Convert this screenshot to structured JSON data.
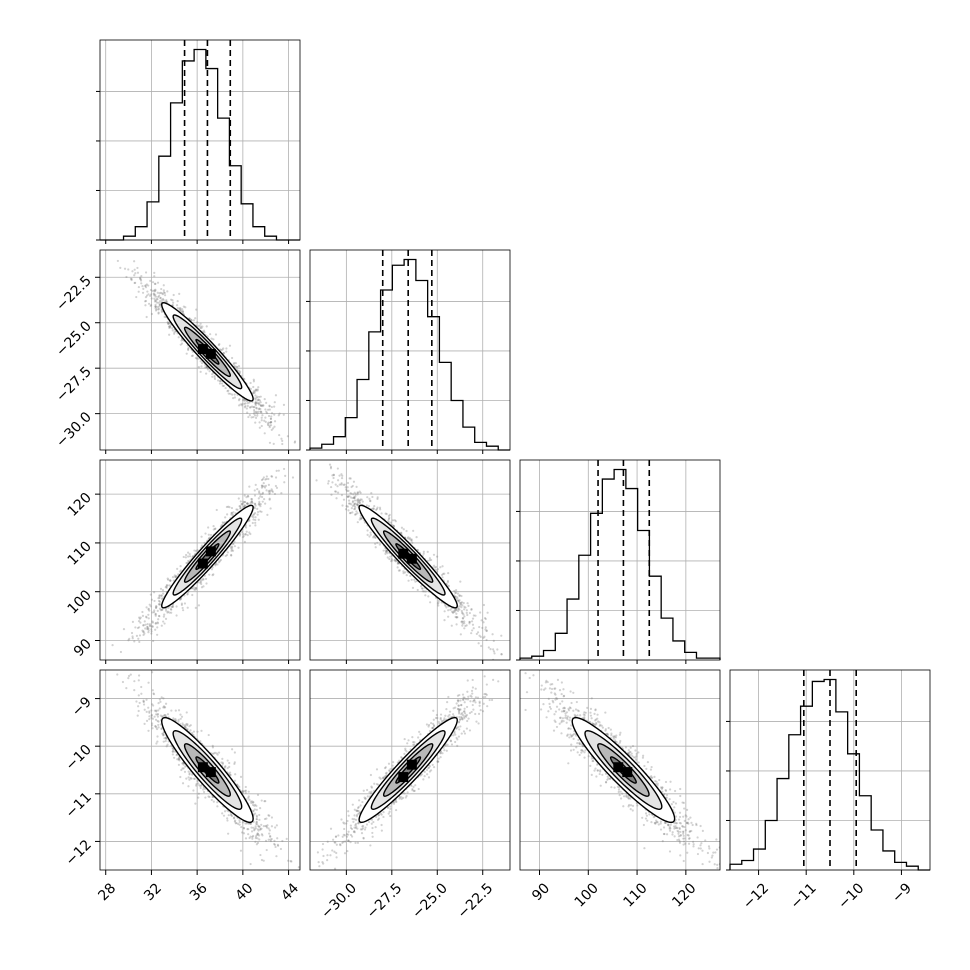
{
  "chart_data": {
    "type": "corner",
    "parameters": [
      {
        "range": [
          27.5,
          45.0
        ],
        "ticks": [
          28,
          32,
          36,
          40,
          44
        ],
        "tick_labels": [
          "28",
          "32",
          "36",
          "40",
          "44"
        ],
        "quantiles": [
          34.9,
          36.9,
          38.9
        ]
      },
      {
        "range": [
          -32.0,
          -21.0
        ],
        "ticks": [
          -30.0,
          -27.5,
          -25.0,
          -22.5
        ],
        "tick_labels": [
          "−30.0",
          "−27.5",
          "−25.0",
          "−22.5"
        ],
        "quantiles": [
          -28.0,
          -26.6,
          -25.3
        ]
      },
      {
        "range": [
          86.0,
          127.0
        ],
        "ticks": [
          90,
          100,
          110,
          120
        ],
        "tick_labels": [
          "90",
          "100",
          "110",
          "120"
        ],
        "quantiles": [
          102.0,
          107.2,
          112.5
        ]
      },
      {
        "range": [
          -12.6,
          -8.4
        ],
        "ticks": [
          -12,
          -11,
          -10,
          -9
        ],
        "tick_labels": [
          "−12",
          "−11",
          "−10",
          "−9"
        ],
        "quantiles": [
          -11.05,
          -10.5,
          -9.95
        ]
      }
    ],
    "histograms": [
      [
        0,
        0,
        0.02,
        0.07,
        0.2,
        0.44,
        0.72,
        0.94,
        1.0,
        0.9,
        0.64,
        0.39,
        0.19,
        0.07,
        0.02,
        0,
        0
      ],
      [
        0.01,
        0.03,
        0.07,
        0.17,
        0.37,
        0.62,
        0.84,
        0.97,
        1.0,
        0.89,
        0.7,
        0.46,
        0.26,
        0.12,
        0.04,
        0.02,
        0
      ],
      [
        0.01,
        0.02,
        0.05,
        0.14,
        0.32,
        0.55,
        0.77,
        0.95,
        1.0,
        0.9,
        0.68,
        0.44,
        0.22,
        0.1,
        0.04,
        0.01,
        0.01
      ],
      [
        0.03,
        0.05,
        0.11,
        0.26,
        0.48,
        0.71,
        0.86,
        0.99,
        1.0,
        0.83,
        0.61,
        0.39,
        0.21,
        0.1,
        0.04,
        0.02,
        0
      ]
    ],
    "histogram_ylim": [
      0,
      1.05
    ],
    "histogram_yticks": [
      0.0,
      0.26,
      0.52,
      0.78
    ],
    "histogram_grid": true,
    "pair_correlations": [
      {
        "x": 0,
        "y": 1,
        "rho": -0.96
      },
      {
        "x": 0,
        "y": 2,
        "rho": 0.96
      },
      {
        "x": 1,
        "y": 2,
        "rho": -0.96
      },
      {
        "x": 0,
        "y": 3,
        "rho": -0.93
      },
      {
        "x": 1,
        "y": 3,
        "rho": 0.95
      },
      {
        "x": 2,
        "y": 3,
        "rho": -0.93
      }
    ],
    "contour_levels_sigma": [
      0.5,
      1.0,
      1.5,
      2.0
    ],
    "samples_shown_as": "gray scatter points with shaded density and black contour lines",
    "colors": {
      "line": "#000000",
      "points": "#7f7f7f",
      "grid": "#b0b0b0"
    }
  }
}
